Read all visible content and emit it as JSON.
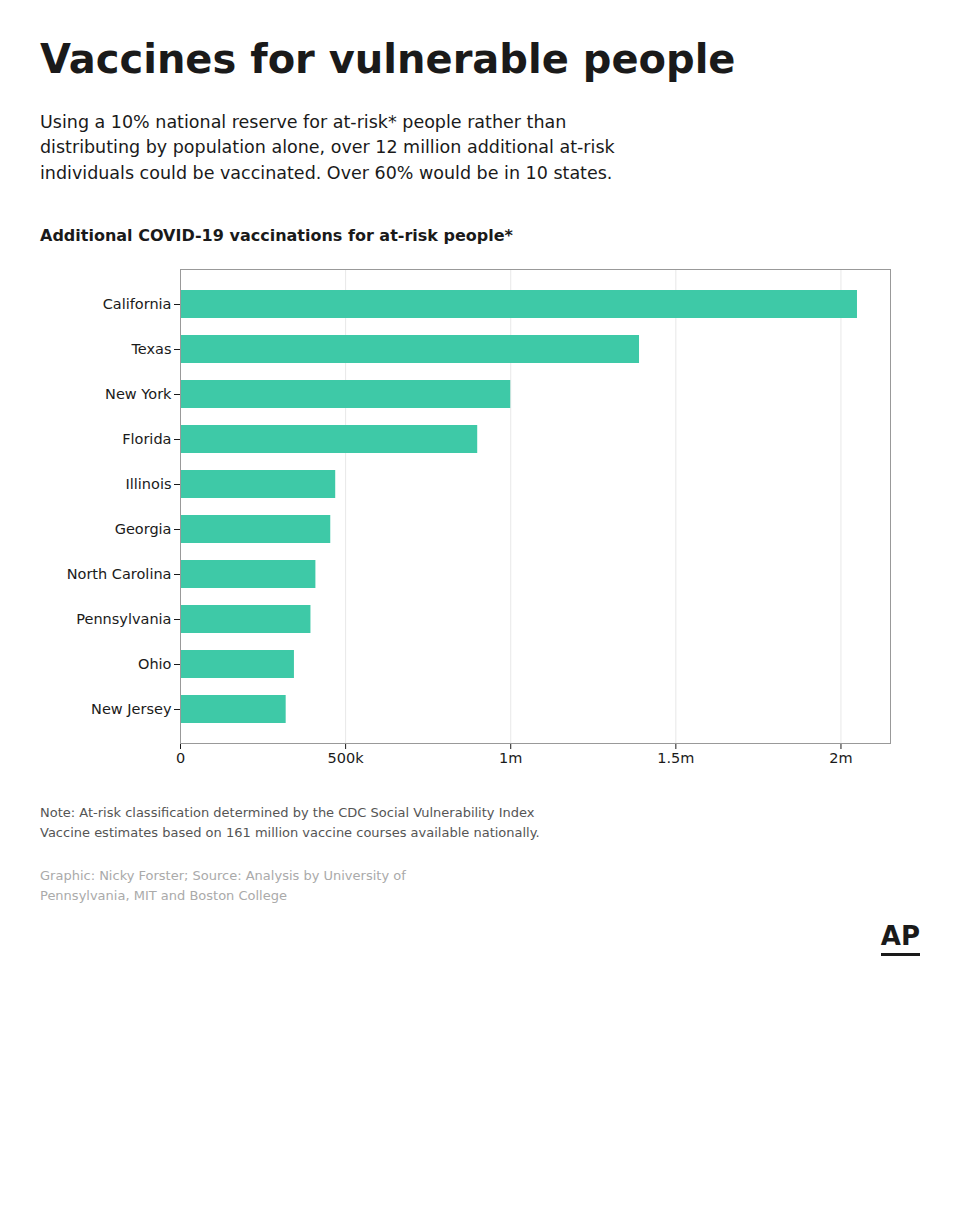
{
  "chart_data": {
    "type": "bar",
    "orientation": "horizontal",
    "title": "Vaccines for vulnerable people",
    "subtitle": [
      "Using a 10% national reserve for at-risk* people rather than",
      "distributing by population alone, over 12 million additional at-risk",
      "individuals could be vaccinated. Over 60% would be in 10 states."
    ],
    "chart_label": "Additional COVID-19 vaccinations for at-risk people*",
    "categories": [
      "California",
      "Texas",
      "New York",
      "Florida",
      "Illinois",
      "Georgia",
      "North Carolina",
      "Pennsylvania",
      "Ohio",
      "New Jersey"
    ],
    "values": [
      2050000,
      1390000,
      1000000,
      900000,
      470000,
      455000,
      410000,
      395000,
      345000,
      320000
    ],
    "color": "#3EC9A7",
    "xlim": [
      0,
      2150000
    ],
    "xticks": [
      0,
      {
        "value": 500000,
        "label": "500k"
      },
      {
        "value": 1000000,
        "label": "1m"
      },
      {
        "value": 1500000,
        "label": "1.5m"
      },
      {
        "value": 2000000,
        "label": "2m"
      }
    ],
    "grid": true,
    "notes": [
      "Note: At-risk classification determined by the CDC Social Vulnerability Index",
      "Vaccine estimates based on 161 million vaccine courses available nationally."
    ],
    "credits": [
      "Graphic: Nicky Forster; Source: Analysis by University of",
      "Pennsylvania, MIT and Boston College"
    ],
    "logo": "AP"
  }
}
